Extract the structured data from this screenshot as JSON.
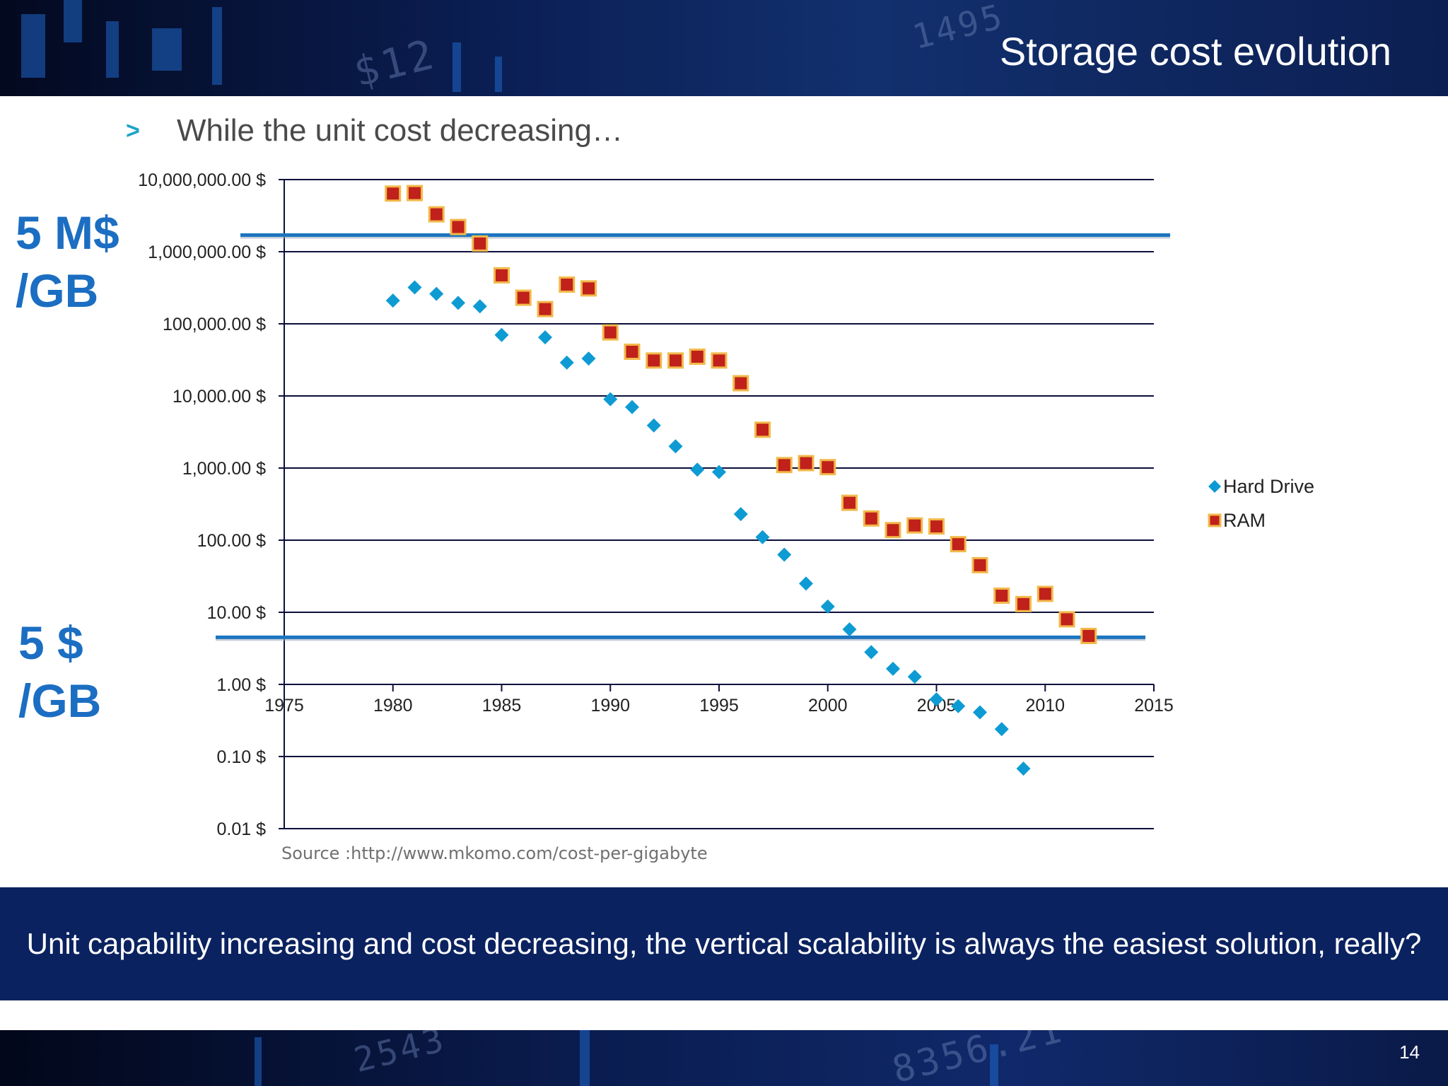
{
  "slide": {
    "title": "Storage cost evolution",
    "bullet_marker": ">",
    "bullet_text": "While the unit cost decreasing…",
    "callout_high_line1": "5 M$",
    "callout_high_line2": "/GB",
    "callout_low_line1": "5 $",
    "callout_low_line2": "/GB",
    "source": "Source :http://www.mkomo.com/cost-per-gigabyte",
    "conclusion": "Unit capability increasing and cost decreasing, the vertical scalability is always the easiest solution, really?",
    "page_number": "14",
    "banner_digits_top": "$12",
    "banner_digits_top2": "1495",
    "banner_digits_bottom": "2543",
    "banner_digits_bottom2": "8356.21"
  },
  "colors": {
    "hard_drive": "#0e9bd3",
    "ram_fill": "#c0211a",
    "ram_border": "#f2b94a",
    "reference_line": "#1c75c0",
    "gridline": "#0b0f3a",
    "callout": "#1b6ec2"
  },
  "chart_data": {
    "type": "scatter",
    "title": "",
    "xlabel": "",
    "ylabel": "",
    "x_scale": "linear",
    "y_scale": "log",
    "xlim": [
      1975,
      2015
    ],
    "ylim": [
      0.01,
      10000000
    ],
    "x_ticks": [
      1975,
      1980,
      1985,
      1990,
      1995,
      2000,
      2005,
      2010,
      2015
    ],
    "y_ticks": [
      0.01,
      0.1,
      1,
      10,
      100,
      1000,
      10000,
      100000,
      1000000,
      10000000
    ],
    "y_tick_labels": [
      "0.01 $",
      "0.10 $",
      "1.00 $",
      "10.00 $",
      "100.00 $",
      "1,000.00 $",
      "10,000.00 $",
      "100,000.00 $",
      "1,000,000.00 $",
      "10,000,000.00 $"
    ],
    "x_axis_crosses_at": 1,
    "grid": true,
    "legend_position": "right",
    "series": [
      {
        "name": "Hard Drive",
        "marker": "diamond",
        "points": [
          [
            1980,
            210000
          ],
          [
            1981,
            320000
          ],
          [
            1982,
            260000
          ],
          [
            1983,
            195000
          ],
          [
            1984,
            175000
          ],
          [
            1985,
            70000
          ],
          [
            1987,
            65000
          ],
          [
            1988,
            29000
          ],
          [
            1989,
            33000
          ],
          [
            1990,
            9000
          ],
          [
            1991,
            7000
          ],
          [
            1992,
            3900
          ],
          [
            1993,
            2000
          ],
          [
            1994,
            950
          ],
          [
            1995,
            880
          ],
          [
            1996,
            230
          ],
          [
            1997,
            110
          ],
          [
            1998,
            63
          ],
          [
            1999,
            25
          ],
          [
            2000,
            12
          ],
          [
            2001,
            5.8
          ],
          [
            2002,
            2.8
          ],
          [
            2003,
            1.65
          ],
          [
            2004,
            1.28
          ],
          [
            2005,
            0.62
          ],
          [
            2006,
            0.5
          ],
          [
            2007,
            0.41
          ],
          [
            2008,
            0.24
          ],
          [
            2009,
            0.068
          ]
        ]
      },
      {
        "name": "RAM",
        "marker": "square",
        "points": [
          [
            1980,
            6400000
          ],
          [
            1981,
            6500000
          ],
          [
            1982,
            3300000
          ],
          [
            1983,
            2200000
          ],
          [
            1984,
            1300000
          ],
          [
            1985,
            470000
          ],
          [
            1986,
            230000
          ],
          [
            1987,
            160000
          ],
          [
            1988,
            350000
          ],
          [
            1989,
            310000
          ],
          [
            1990,
            76000
          ],
          [
            1991,
            41000
          ],
          [
            1992,
            31000
          ],
          [
            1993,
            31000
          ],
          [
            1994,
            35000
          ],
          [
            1995,
            31000
          ],
          [
            1996,
            15000
          ],
          [
            1997,
            3400
          ],
          [
            1998,
            1100
          ],
          [
            1999,
            1170
          ],
          [
            2000,
            1030
          ],
          [
            2001,
            330
          ],
          [
            2002,
            200
          ],
          [
            2003,
            138
          ],
          [
            2004,
            160
          ],
          [
            2005,
            155
          ],
          [
            2006,
            88
          ],
          [
            2007,
            45
          ],
          [
            2008,
            17
          ],
          [
            2009,
            13
          ],
          [
            2010,
            18
          ],
          [
            2011,
            8
          ],
          [
            2012,
            4.7
          ]
        ]
      }
    ],
    "reference_lines": [
      {
        "label": "5 M$ /GB",
        "value": 1700000
      },
      {
        "label": "5 $ /GB",
        "value": 4.5
      }
    ]
  }
}
